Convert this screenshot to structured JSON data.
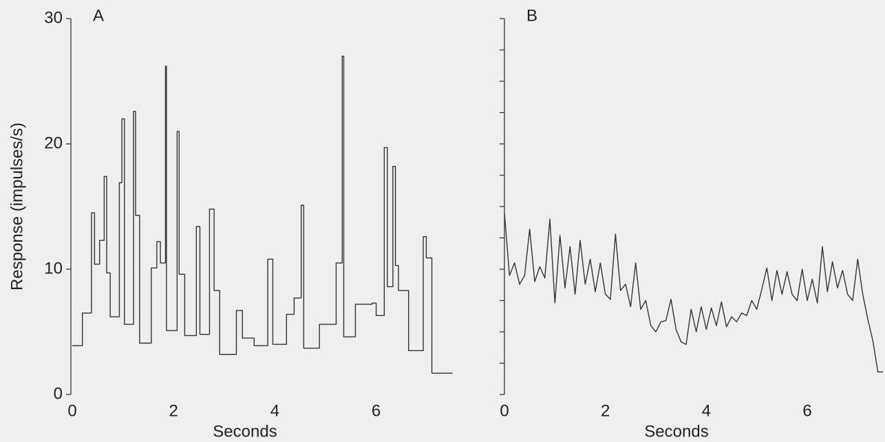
{
  "chart_data": [
    {
      "type": "line",
      "title": "A",
      "xlabel": "Seconds",
      "ylabel": "Response (impulses/s)",
      "drawstyle": "steps-post",
      "color": "#333333",
      "xlim": [
        0,
        7.5
      ],
      "ylim": [
        0,
        30
      ],
      "xticks": [
        0,
        2,
        4,
        6
      ],
      "yticks": [
        0,
        10,
        20,
        30
      ],
      "ytick_labels": true,
      "x": [
        0,
        0.2,
        0.38,
        0.44,
        0.54,
        0.63,
        0.68,
        0.75,
        0.93,
        0.98,
        1.03,
        1.21,
        1.25,
        1.33,
        1.56,
        1.67,
        1.74,
        1.84,
        1.86,
        2.07,
        2.11,
        2.22,
        2.45,
        2.52,
        2.71,
        2.8,
        2.91,
        3.24,
        3.36,
        3.59,
        3.86,
        3.96,
        4.23,
        4.38,
        4.52,
        4.57,
        4.88,
        5.21,
        5.33,
        5.36,
        5.59,
        5.92,
        6.0,
        6.16,
        6.22,
        6.33,
        6.38,
        6.44,
        6.64,
        6.93,
        6.99,
        7.1,
        7.51
      ],
      "values": [
        3.9,
        6.5,
        14.5,
        10.4,
        12.3,
        17.4,
        9.7,
        6.2,
        16.9,
        22,
        5.6,
        22.6,
        14.3,
        4.1,
        10.1,
        12.2,
        10.5,
        26.2,
        5.1,
        21,
        9.6,
        4.7,
        13.4,
        4.8,
        14.8,
        8.3,
        3.2,
        6.7,
        4.5,
        3.9,
        10.8,
        4.0,
        6.4,
        7.7,
        15.1,
        3.7,
        5.6,
        10.5,
        27,
        4.6,
        7.2,
        7.3,
        6.3,
        19.7,
        8.6,
        18.2,
        10.3,
        8.3,
        3.5,
        12.6,
        10.9,
        1.7,
        1.7
      ]
    },
    {
      "type": "line",
      "title": "B",
      "xlabel": "Seconds",
      "drawstyle": "line",
      "color": "#333333",
      "xlim": [
        0,
        7.5
      ],
      "ylim": [
        0,
        30
      ],
      "xticks": [
        0,
        2,
        4,
        6
      ],
      "yticks": [
        0,
        2.5,
        5,
        7.5,
        10,
        12.5,
        15,
        17.5,
        20,
        22.5,
        25,
        27.5,
        30
      ],
      "ytick_labels": false,
      "x": [
        0,
        0.1,
        0.2,
        0.3,
        0.4,
        0.5,
        0.6,
        0.7,
        0.8,
        0.9,
        1.0,
        1.1,
        1.2,
        1.3,
        1.4,
        1.5,
        1.6,
        1.7,
        1.8,
        1.9,
        2.0,
        2.1,
        2.2,
        2.3,
        2.4,
        2.5,
        2.6,
        2.7,
        2.8,
        2.9,
        3.0,
        3.1,
        3.2,
        3.3,
        3.4,
        3.5,
        3.6,
        3.7,
        3.8,
        3.9,
        4.0,
        4.1,
        4.2,
        4.3,
        4.4,
        4.5,
        4.6,
        4.7,
        4.8,
        4.9,
        5.0,
        5.1,
        5.2,
        5.3,
        5.4,
        5.5,
        5.6,
        5.7,
        5.8,
        5.9,
        6.0,
        6.1,
        6.2,
        6.3,
        6.4,
        6.5,
        6.6,
        6.7,
        6.8,
        6.9,
        7.0,
        7.1,
        7.2,
        7.3,
        7.4,
        7.5
      ],
      "values": [
        14.5,
        9.5,
        10.5,
        8.8,
        9.5,
        13.2,
        9.0,
        10.2,
        9.3,
        14.0,
        7.3,
        12.7,
        8.5,
        11.8,
        8.0,
        12.3,
        8.8,
        10.8,
        8.2,
        10.5,
        8.0,
        7.6,
        12.8,
        8.3,
        8.8,
        7.0,
        10.5,
        6.8,
        7.5,
        5.5,
        5.0,
        5.8,
        5.9,
        7.6,
        5.2,
        4.2,
        4.0,
        6.8,
        5.0,
        7.0,
        5.2,
        6.9,
        5.5,
        7.4,
        5.4,
        6.2,
        5.8,
        6.5,
        6.3,
        7.5,
        6.8,
        8.4,
        10.1,
        7.5,
        9.9,
        8.0,
        9.8,
        8.0,
        7.5,
        10.0,
        7.5,
        9.2,
        7.3,
        11.8,
        8.2,
        10.6,
        8.5,
        9.9,
        8.0,
        7.5,
        10.8,
        8.0,
        6.0,
        4.3,
        1.8,
        1.8
      ]
    }
  ]
}
